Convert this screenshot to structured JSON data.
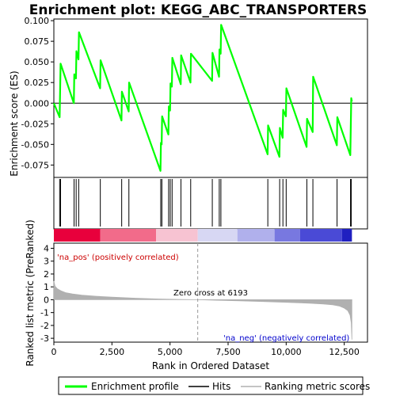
{
  "chart_data": {
    "type": "line",
    "title": "Enrichment plot: KEGG_ABC_TRANSPORTERS",
    "top_panel": {
      "ylabel": "Enrichment score (ES)",
      "ylim": [
        -0.09,
        0.102
      ],
      "yticks": [
        "0.100",
        "0.075",
        "0.050",
        "0.025",
        "0.000",
        "-0.025",
        "-0.050",
        "-0.075"
      ],
      "ytick_values": [
        0.1,
        0.075,
        0.05,
        0.025,
        0.0,
        -0.025,
        -0.05,
        -0.075
      ],
      "series": [
        {
          "name": "Enrichment profile",
          "color": "#00ff00",
          "x": [
            0,
            250,
            270,
            290,
            860,
            880,
            950,
            970,
            1060,
            1080,
            1990,
            2010,
            2910,
            2930,
            3220,
            3240,
            4590,
            4610,
            4640,
            4660,
            4930,
            4950,
            5000,
            5020,
            5080,
            5100,
            5460,
            5480,
            5880,
            5900,
            6810,
            6830,
            7110,
            7130,
            7180,
            7200,
            9200,
            9220,
            9710,
            9730,
            9850,
            9870,
            9990,
            10010,
            10880,
            10900,
            11140,
            11160,
            12180,
            12200,
            12760,
            12780,
            12800,
            12830
          ],
          "y": [
            0.0,
            -0.017,
            0.015,
            0.048,
            0.0,
            0.035,
            0.03,
            0.063,
            0.053,
            0.086,
            0.018,
            0.052,
            -0.021,
            0.014,
            -0.01,
            0.025,
            -0.082,
            -0.048,
            -0.05,
            -0.016,
            -0.038,
            -0.004,
            -0.009,
            0.024,
            0.02,
            0.055,
            0.023,
            0.058,
            0.025,
            0.06,
            0.027,
            0.061,
            0.032,
            0.065,
            0.06,
            0.095,
            -0.062,
            -0.027,
            -0.065,
            -0.03,
            -0.042,
            -0.008,
            -0.016,
            0.018,
            -0.053,
            -0.019,
            -0.035,
            0.032,
            -0.051,
            -0.017,
            -0.063,
            -0.029,
            0.006,
            0.002
          ]
        }
      ]
    },
    "hits": {
      "name": "Hits",
      "x": [
        250,
        290,
        870,
        960,
        1070,
        2000,
        2920,
        3230,
        4600,
        4650,
        4940,
        5010,
        5090,
        5470,
        5890,
        6820,
        7120,
        7190,
        9210,
        9720,
        9860,
        10000,
        10890,
        11150,
        12190,
        12770,
        12800
      ]
    },
    "color_bar": {
      "segments": [
        {
          "from": 0,
          "to": 2000,
          "color": "#e8003c"
        },
        {
          "from": 2000,
          "to": 4400,
          "color": "#f26b8a"
        },
        {
          "from": 4400,
          "to": 6193,
          "color": "#f7c3d2"
        },
        {
          "from": 6193,
          "to": 7900,
          "color": "#d7d7f3"
        },
        {
          "from": 7900,
          "to": 9500,
          "color": "#b0b0ec"
        },
        {
          "from": 9500,
          "to": 10600,
          "color": "#7878e0"
        },
        {
          "from": 10600,
          "to": 12400,
          "color": "#4a4ad6"
        },
        {
          "from": 12400,
          "to": 12830,
          "color": "#2020c0"
        }
      ]
    },
    "bottom_panel": {
      "ylabel": "Ranked list metric (PreRanked)",
      "xlabel": "Rank in Ordered Dataset",
      "ylim": [
        -3.3,
        4.4
      ],
      "yticks": [
        "4",
        "3",
        "2",
        "1",
        "0",
        "-1",
        "-2",
        "-3"
      ],
      "ytick_values": [
        4,
        3,
        2,
        1,
        0,
        -1,
        -2,
        -3
      ],
      "xlim": [
        0,
        13500
      ],
      "xticks": [
        "0",
        "2,500",
        "5,000",
        "7,500",
        "10,000",
        "12,500"
      ],
      "xtick_values": [
        0,
        2500,
        5000,
        7500,
        10000,
        12500
      ],
      "series": [
        {
          "name": "Ranking metric scores",
          "color": "#b0b0b0",
          "x": [
            0,
            50,
            150,
            300,
            500,
            800,
            1200,
            1800,
            2500,
            3500,
            4500,
            5500,
            6193,
            7000,
            8000,
            9000,
            10000,
            11000,
            11600,
            12000,
            12300,
            12500,
            12650,
            12750,
            12800,
            12830
          ],
          "y": [
            1.45,
            1.05,
            0.85,
            0.7,
            0.55,
            0.45,
            0.35,
            0.27,
            0.2,
            0.12,
            0.06,
            0.02,
            0.0,
            -0.04,
            -0.09,
            -0.14,
            -0.2,
            -0.27,
            -0.33,
            -0.4,
            -0.5,
            -0.65,
            -0.85,
            -1.2,
            -1.8,
            -3.1
          ]
        }
      ],
      "zero_cross_label": "Zero cross at 6193",
      "zero_cross": 6193,
      "pos_label": "'na_pos' (positively correlated)",
      "neg_label": "'na_neg' (negatively correlated)"
    },
    "legend": [
      {
        "label": "Enrichment profile",
        "color": "#00ff00"
      },
      {
        "label": "Hits",
        "color": "#000000"
      },
      {
        "label": "Ranking metric scores",
        "color": "#b0b0b0"
      }
    ]
  }
}
